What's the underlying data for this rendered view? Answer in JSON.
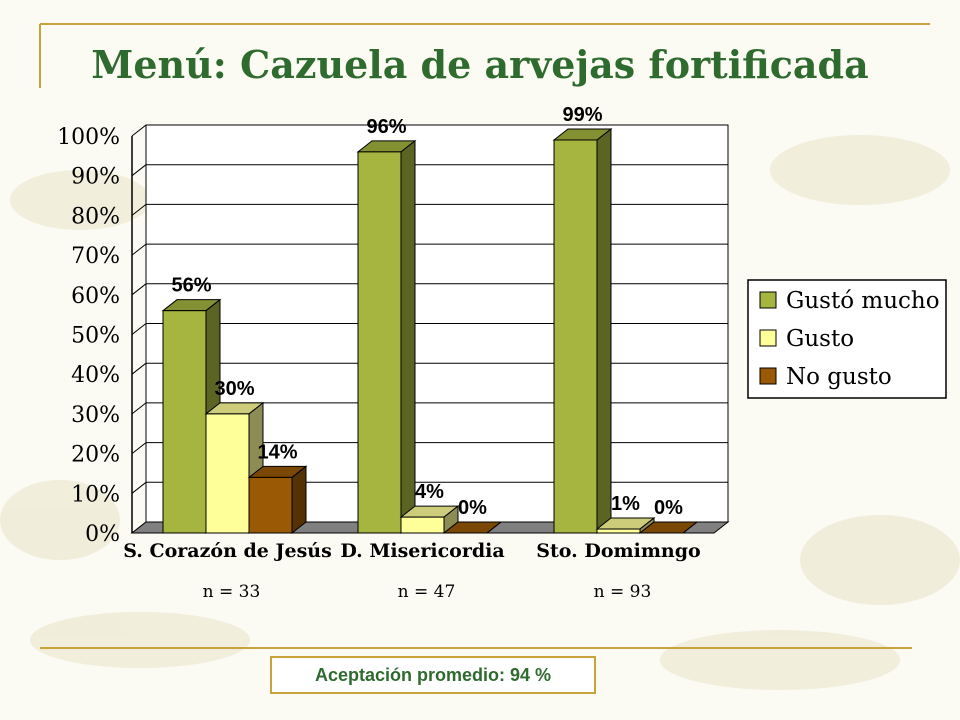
{
  "slide": {
    "title": "Menú: Cazuela de arvejas fortificada",
    "footer": "Aceptación promedio: 94 %"
  },
  "colors": {
    "title": "#2f6b2f",
    "rule": "#c8a23a",
    "gusto_mucho": "#a5b53f",
    "gusto": "#ffff99",
    "no_gusto": "#9a5a05"
  },
  "chart_data": {
    "type": "bar",
    "categories": [
      "S. Corazón de Jesús",
      "D. Misericordia",
      "Sto. Domimngo"
    ],
    "sample_sizes": [
      "n = 33",
      "n = 47",
      "n = 93"
    ],
    "series": [
      {
        "name": "Gustó mucho",
        "values": [
          56,
          96,
          99
        ],
        "labels": [
          "56%",
          "96%",
          "99%"
        ]
      },
      {
        "name": "Gusto",
        "values": [
          30,
          4,
          1
        ],
        "labels": [
          "30%",
          "4%",
          "1%"
        ]
      },
      {
        "name": "No gusto",
        "values": [
          14,
          0,
          0
        ],
        "labels": [
          "14%",
          "0%",
          "0%"
        ]
      }
    ],
    "ylim": [
      0,
      100
    ],
    "y_ticks": [
      "0%",
      "10%",
      "20%",
      "30%",
      "40%",
      "50%",
      "60%",
      "70%",
      "80%",
      "90%",
      "100%"
    ],
    "grid": true,
    "legend_position": "right",
    "style": "3d"
  }
}
